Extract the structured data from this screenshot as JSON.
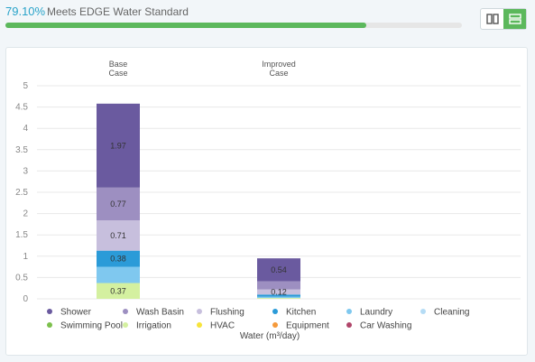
{
  "header": {
    "percent": "79.10%",
    "percent_label": "Meets EDGE Water Standard",
    "progress_fraction": 0.791
  },
  "toggle": {
    "left_icon": "columns-icon",
    "right_icon": "rows-icon",
    "active": "right"
  },
  "chart_data": {
    "type": "bar",
    "stacked": true,
    "categories": [
      "Base\nCase",
      "Improved\nCase"
    ],
    "xlabel": "Water (m³/day)",
    "ylim": [
      0,
      5
    ],
    "yticks": [
      "0",
      "0.5",
      "1",
      "1.5",
      "2",
      "2.5",
      "3",
      "3.5",
      "4",
      "4.5",
      "5"
    ],
    "grid": true,
    "legend_position": "bottom",
    "series": [
      {
        "name": "Irrigation",
        "color": "#d4f0a0",
        "values": [
          0.37,
          0.02
        ]
      },
      {
        "name": "Laundry",
        "color": "#7fc8ef",
        "values": [
          0.38,
          0.03
        ]
      },
      {
        "name": "Kitchen",
        "color": "#2b9bd8",
        "values": [
          0.38,
          0.05
        ]
      },
      {
        "name": "Flushing",
        "color": "#c7bfdd",
        "values": [
          0.71,
          0.12
        ]
      },
      {
        "name": "Wash Basin",
        "color": "#9d8fc1",
        "values": [
          0.77,
          0.19
        ]
      },
      {
        "name": "Shower",
        "color": "#6a5a9f",
        "values": [
          1.97,
          0.54
        ]
      }
    ],
    "data_labels": [
      {
        "text": "0.37",
        "bar": 0,
        "series": "Irrigation"
      },
      {
        "text": "0.38",
        "bar": 0,
        "series": "Kitchen"
      },
      {
        "text": "0.71",
        "bar": 0,
        "series": "Flushing"
      },
      {
        "text": "0.77",
        "bar": 0,
        "series": "Wash Basin"
      },
      {
        "text": "1.97",
        "bar": 0,
        "series": "Shower"
      },
      {
        "text": "0.12",
        "bar": 1,
        "series": "Flushing"
      },
      {
        "text": "0.54",
        "bar": 1,
        "series": "Shower"
      }
    ],
    "legend": [
      {
        "name": "Shower",
        "color": "#6a5a9f"
      },
      {
        "name": "Wash Basin",
        "color": "#9d8fc1"
      },
      {
        "name": "Flushing",
        "color": "#c7bfdd"
      },
      {
        "name": "Kitchen",
        "color": "#2b9bd8"
      },
      {
        "name": "Laundry",
        "color": "#7fc8ef"
      },
      {
        "name": "Cleaning",
        "color": "#b5dcf5"
      },
      {
        "name": "Swimming Pool",
        "color": "#7cc04c"
      },
      {
        "name": "Irrigation",
        "color": "#d4f0a0"
      },
      {
        "name": "HVAC",
        "color": "#f7e43a"
      },
      {
        "name": "Equipment",
        "color": "#f59a3b"
      },
      {
        "name": "Car Washing",
        "color": "#b0466a"
      }
    ]
  }
}
